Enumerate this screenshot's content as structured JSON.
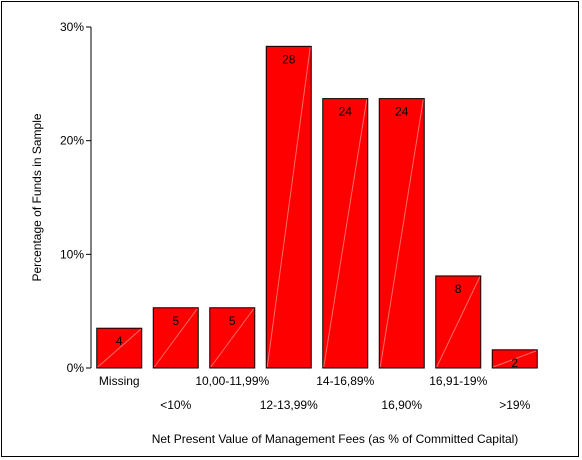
{
  "chart_data": {
    "type": "bar",
    "title": "",
    "xlabel": "Net Present Value of Management Fees (as % of Committed Capital)",
    "ylabel": "Percentage of Funds in Sample",
    "categories": [
      "Missing",
      "<10%",
      "10,00-11,99%",
      "12-13,99%",
      "14-16,89%",
      "16,90%",
      "16,91-19%",
      ">19%"
    ],
    "values": [
      3.5,
      5.3,
      5.3,
      28.3,
      23.7,
      23.7,
      8.1,
      1.6
    ],
    "data_labels": [
      "4",
      "5",
      "5",
      "28",
      "24",
      "24",
      "8",
      "2"
    ],
    "ylim": [
      0,
      30
    ],
    "yticks": [
      0,
      10,
      20,
      30
    ],
    "ytick_labels": [
      "0%",
      "10%",
      "20%",
      "30%"
    ],
    "bar_color": "#ff0000",
    "grid": false,
    "legend": "none"
  }
}
